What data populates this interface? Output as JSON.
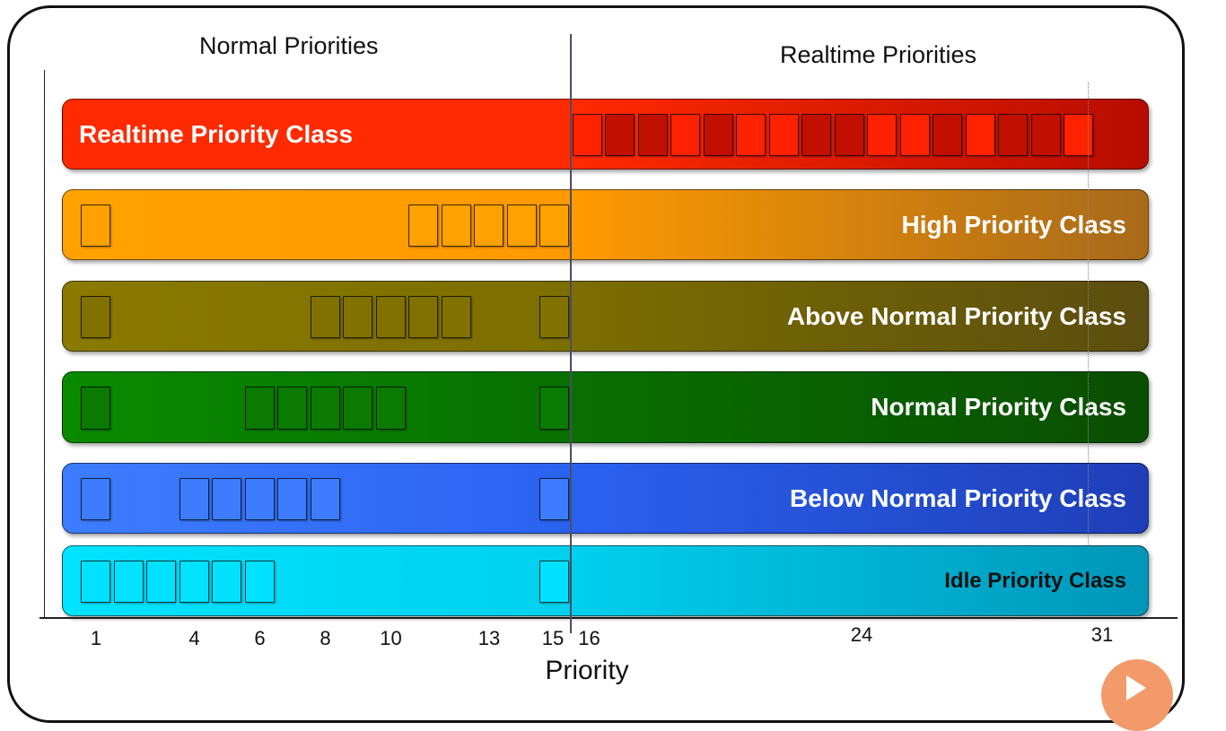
{
  "headers": {
    "normal": "Normal Priorities",
    "realtime": "Realtime Priorities"
  },
  "axis": {
    "title": "Priority",
    "ticks": [
      "1",
      "4",
      "6",
      "8",
      "10",
      "13",
      "15",
      "16",
      "24",
      "31"
    ],
    "tick_values": [
      1,
      4,
      6,
      8,
      10,
      13,
      15,
      16,
      24,
      31
    ]
  },
  "classes": [
    {
      "id": "realtime",
      "label": "Realtime Priority Class",
      "label_side": "left",
      "label_color": "#ffffff",
      "gradient": [
        "#ff2a00",
        "#ff2a00",
        "#b80c00"
      ],
      "box_color": "#ee1500",
      "box_colors_alt": [
        "#ff2200",
        "#c21000"
      ],
      "priorities": [
        16,
        17,
        18,
        19,
        20,
        21,
        22,
        23,
        24,
        25,
        26,
        27,
        28,
        29,
        30,
        31
      ]
    },
    {
      "id": "high",
      "label": "High Priority Class",
      "label_side": "right",
      "label_color": "#ffffff",
      "gradient": [
        "#ffa200",
        "#ff9a00",
        "#a86a1a"
      ],
      "box_color": "#ffa100",
      "priorities": [
        1,
        11,
        12,
        13,
        14,
        15
      ]
    },
    {
      "id": "above-normal",
      "label": "Above Normal Priority Class",
      "label_side": "right",
      "label_color": "#ffffff",
      "gradient": [
        "#8a7a00",
        "#7c6e00",
        "#5c4d10"
      ],
      "box_color": "#817100",
      "priorities": [
        1,
        8,
        9,
        10,
        11,
        12,
        15
      ]
    },
    {
      "id": "normal",
      "label": "Normal Priority Class",
      "label_side": "right",
      "label_color": "#ffffff",
      "gradient": [
        "#0a8a00",
        "#087000",
        "#0a4e02"
      ],
      "box_color": "#0a7a00",
      "priorities": [
        1,
        6,
        7,
        8,
        9,
        10,
        15
      ]
    },
    {
      "id": "below-normal",
      "label": "Below Normal Priority Class",
      "label_side": "right",
      "label_color": "#ffffff",
      "gradient": [
        "#3d7dff",
        "#2a62f0",
        "#1f3eb8"
      ],
      "box_color": "#3d7cff",
      "priorities": [
        1,
        4,
        5,
        6,
        7,
        8,
        15
      ]
    },
    {
      "id": "idle",
      "label": "Idle Priority Class",
      "label_side": "right",
      "label_color": "#111111",
      "gradient": [
        "#00e4ff",
        "#00d0ee",
        "#0096b8"
      ],
      "box_color": "#00e2ff",
      "priorities": [
        1,
        2,
        3,
        4,
        5,
        6,
        15
      ]
    }
  ]
}
